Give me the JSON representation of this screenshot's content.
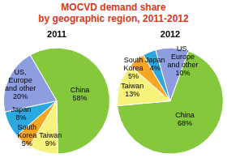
{
  "title": [
    "MOCVD demand share",
    "by geographic region, 2011-2012"
  ],
  "chart_data": [
    {
      "type": "pie",
      "title": "2011",
      "categories": [
        "China",
        "Taiwan",
        "South Korea",
        "Japan",
        "US, Europe and other"
      ],
      "values": [
        58,
        9,
        5,
        8,
        20
      ],
      "value_labels": [
        "58%",
        "9%",
        "5%",
        "8%",
        "20%"
      ],
      "colors": [
        "#86c83c",
        "#f6f27c",
        "#f6a623",
        "#2ba8e0",
        "#8e9ce0"
      ],
      "data_labels": true
    },
    {
      "type": "pie",
      "title": "2012",
      "categories": [
        "China",
        "Taiwan",
        "South Korea",
        "Japan",
        "US, Europe and other"
      ],
      "values": [
        68,
        13,
        5,
        4,
        10
      ],
      "value_labels": [
        "68%",
        "13%",
        "5%",
        "4%",
        "10%"
      ],
      "colors": [
        "#86c83c",
        "#f6f27c",
        "#f6a623",
        "#2ba8e0",
        "#8e9ce0"
      ],
      "data_labels": true
    }
  ]
}
